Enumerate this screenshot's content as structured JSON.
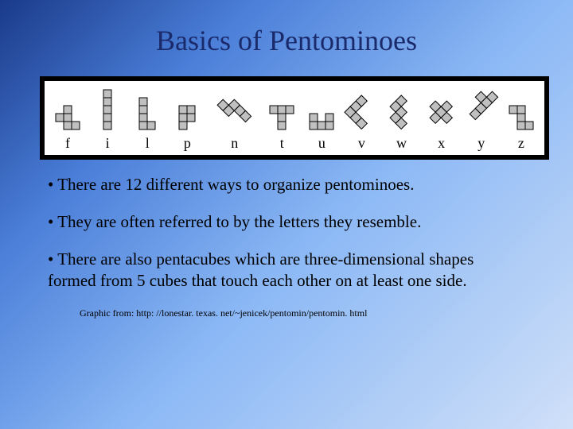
{
  "title": "Basics of Pentominoes",
  "pentominoes": {
    "cell_size": 10,
    "cell_fill": "#c0c0c0",
    "cell_stroke": "#000000",
    "pieces": [
      {
        "label": "f",
        "rotation": 0,
        "cells": [
          [
            0,
            1
          ],
          [
            1,
            0
          ],
          [
            1,
            1
          ],
          [
            1,
            2
          ],
          [
            2,
            2
          ]
        ]
      },
      {
        "label": "i",
        "rotation": 0,
        "cells": [
          [
            0,
            0
          ],
          [
            0,
            1
          ],
          [
            0,
            2
          ],
          [
            0,
            3
          ],
          [
            0,
            4
          ]
        ]
      },
      {
        "label": "l",
        "rotation": 0,
        "cells": [
          [
            0,
            0
          ],
          [
            0,
            1
          ],
          [
            0,
            2
          ],
          [
            0,
            3
          ],
          [
            1,
            3
          ]
        ]
      },
      {
        "label": "p",
        "rotation": 0,
        "cells": [
          [
            0,
            0
          ],
          [
            1,
            0
          ],
          [
            0,
            1
          ],
          [
            1,
            1
          ],
          [
            0,
            2
          ]
        ]
      },
      {
        "label": "n",
        "rotation": 45,
        "cells": [
          [
            0,
            1
          ],
          [
            1,
            0
          ],
          [
            1,
            1
          ],
          [
            2,
            0
          ],
          [
            3,
            0
          ]
        ]
      },
      {
        "label": "t",
        "rotation": 0,
        "cells": [
          [
            0,
            0
          ],
          [
            1,
            0
          ],
          [
            2,
            0
          ],
          [
            1,
            1
          ],
          [
            1,
            2
          ]
        ]
      },
      {
        "label": "u",
        "rotation": 0,
        "cells": [
          [
            0,
            0
          ],
          [
            2,
            0
          ],
          [
            0,
            1
          ],
          [
            1,
            1
          ],
          [
            2,
            1
          ]
        ]
      },
      {
        "label": "v",
        "rotation": 45,
        "cells": [
          [
            0,
            0
          ],
          [
            0,
            1
          ],
          [
            0,
            2
          ],
          [
            1,
            2
          ],
          [
            2,
            2
          ]
        ]
      },
      {
        "label": "w",
        "rotation": 45,
        "cells": [
          [
            0,
            0
          ],
          [
            0,
            1
          ],
          [
            1,
            1
          ],
          [
            1,
            2
          ],
          [
            2,
            2
          ]
        ]
      },
      {
        "label": "x",
        "rotation": 45,
        "cells": [
          [
            1,
            0
          ],
          [
            0,
            1
          ],
          [
            1,
            1
          ],
          [
            2,
            1
          ],
          [
            1,
            2
          ]
        ]
      },
      {
        "label": "y",
        "rotation": 45,
        "cells": [
          [
            1,
            0
          ],
          [
            0,
            1
          ],
          [
            1,
            1
          ],
          [
            1,
            2
          ],
          [
            1,
            3
          ]
        ]
      },
      {
        "label": "z",
        "rotation": 0,
        "cells": [
          [
            0,
            0
          ],
          [
            1,
            0
          ],
          [
            1,
            1
          ],
          [
            1,
            2
          ],
          [
            2,
            2
          ]
        ]
      }
    ]
  },
  "bullets": [
    "There are 12 different ways to organize pentominoes.",
    "They are often referred to by the letters they resemble.",
    "There are also pentacubes which are three-dimensional shapes formed from 5 cubes that touch each other on at least one side."
  ],
  "credit": "Graphic from: http: //lonestar. texas. net/~jenicek/pentomin/pentomin. html"
}
